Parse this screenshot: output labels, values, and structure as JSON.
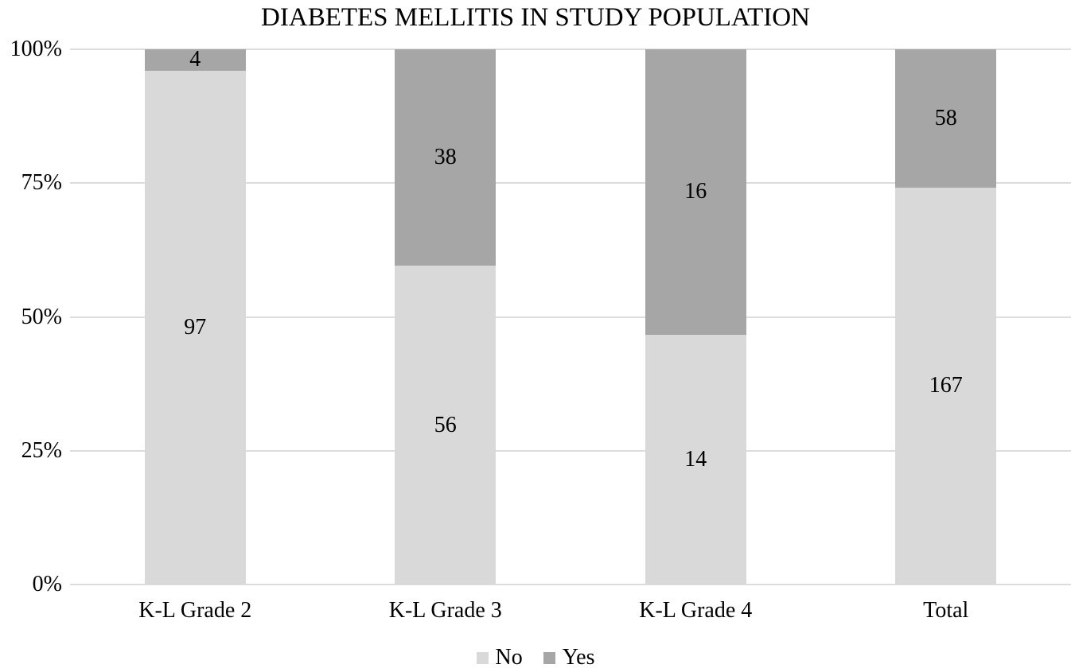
{
  "chart_data": {
    "type": "bar",
    "variant": "stacked-100-percent",
    "title": "DIABETES MELLITIS IN STUDY POPULATION",
    "categories": [
      "K-L Grade 2",
      "K-L Grade 3",
      "K-L Grade 4",
      "Total"
    ],
    "series": [
      {
        "name": "No",
        "color": "#d9d9d9",
        "values": [
          97,
          56,
          14,
          167
        ]
      },
      {
        "name": "Yes",
        "color": "#a6a6a6",
        "values": [
          4,
          38,
          16,
          58
        ]
      }
    ],
    "y_ticks": [
      "0%",
      "25%",
      "50%",
      "75%",
      "100%"
    ],
    "ylim": [
      0,
      100
    ],
    "xlabel": "",
    "ylabel": "",
    "grid": true,
    "gridline_color": "#dcdcdc",
    "data_label_color": "#000000",
    "legend_position": "bottom-center",
    "background_color": "#ffffff"
  }
}
